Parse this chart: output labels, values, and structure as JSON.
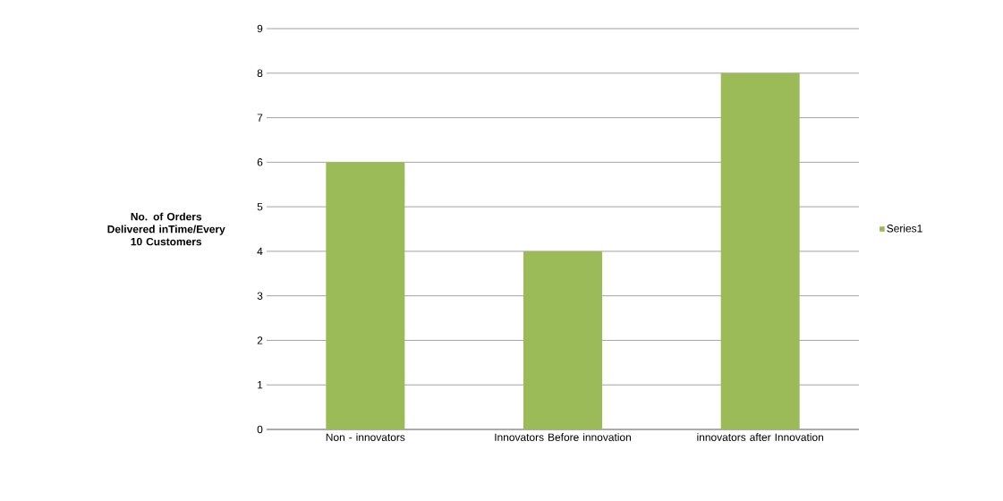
{
  "chart_data": {
    "type": "bar",
    "ylabel": "No. of Orders Delivered inTime/Every 10 Customers",
    "categories": [
      "Non - innovators",
      "Innovators Before innovation",
      "innovators after Innovation"
    ],
    "series": [
      {
        "name": "Series1",
        "color": "#9bbb59",
        "values": [
          6,
          4,
          8
        ]
      }
    ],
    "ylim": [
      0,
      9
    ],
    "yticks": [
      0,
      1,
      2,
      3,
      4,
      5,
      6,
      7,
      8,
      9
    ],
    "grid": "y",
    "legend": "right"
  }
}
